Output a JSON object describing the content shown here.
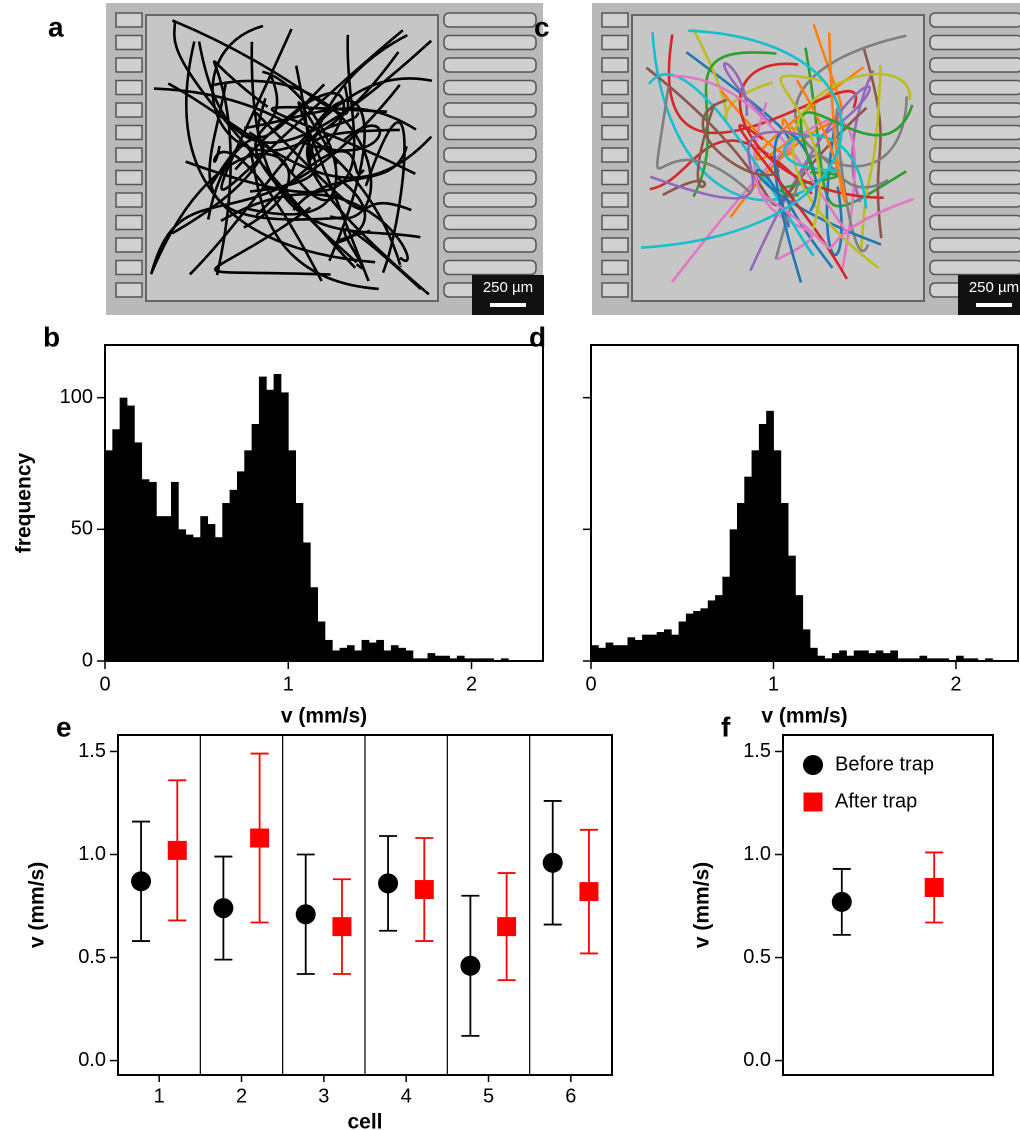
{
  "images": [
    {
      "panel_label": "a",
      "scale_bar": "250 µm"
    },
    {
      "panel_label": "c",
      "scale_bar": "250 µm"
    }
  ],
  "chart_data": [
    {
      "type": "histogram",
      "panel_label": "b",
      "xlabel": "v (mm/s)",
      "ylabel": "frequency",
      "color": "#000000",
      "bins": [
        0,
        0.04,
        0.08,
        0.12,
        0.16,
        0.2,
        0.24,
        0.28,
        0.32,
        0.36,
        0.4,
        0.44,
        0.48,
        0.52,
        0.56,
        0.6,
        0.64,
        0.68,
        0.72,
        0.76,
        0.8,
        0.84,
        0.88,
        0.92,
        0.96,
        1,
        1.04,
        1.08,
        1.12,
        1.16,
        1.2,
        1.24,
        1.28,
        1.32,
        1.36,
        1.4,
        1.44,
        1.48,
        1.52,
        1.56,
        1.6,
        1.64,
        1.68,
        1.72,
        1.76,
        1.8,
        1.84,
        1.88,
        1.92,
        1.96,
        2,
        2.04,
        2.08,
        2.12,
        2.16,
        2.2,
        2.24
      ],
      "values": [
        80,
        88,
        100,
        97,
        83,
        69,
        68,
        55,
        55,
        68,
        50,
        48,
        47,
        55,
        52,
        47,
        60,
        65,
        72,
        80,
        90,
        108,
        103,
        109,
        102,
        80,
        60,
        45,
        28,
        15,
        8,
        4,
        5,
        6,
        4,
        8,
        7,
        8,
        4,
        6,
        5,
        4,
        1,
        1,
        3,
        2,
        2,
        1,
        2,
        1,
        1,
        1,
        1,
        0,
        1,
        0
      ],
      "xlim": [
        0,
        2.39
      ],
      "xticks": [
        0,
        1,
        2
      ],
      "ylim": [
        0,
        120
      ],
      "yticks": [
        0,
        50,
        100
      ]
    },
    {
      "type": "histogram",
      "panel_label": "d",
      "xlabel": "v (mm/s)",
      "color": "#000000",
      "ytick_labels": false,
      "bins": [
        0,
        0.04,
        0.08,
        0.12,
        0.16,
        0.2,
        0.24,
        0.28,
        0.32,
        0.36,
        0.4,
        0.44,
        0.48,
        0.52,
        0.56,
        0.6,
        0.64,
        0.68,
        0.72,
        0.76,
        0.8,
        0.84,
        0.88,
        0.92,
        0.96,
        1,
        1.04,
        1.08,
        1.12,
        1.16,
        1.2,
        1.24,
        1.28,
        1.32,
        1.36,
        1.4,
        1.44,
        1.48,
        1.52,
        1.56,
        1.6,
        1.64,
        1.68,
        1.72,
        1.76,
        1.8,
        1.84,
        1.88,
        1.92,
        1.96,
        2,
        2.04,
        2.08,
        2.12,
        2.16,
        2.2,
        2.24
      ],
      "values": [
        6,
        5,
        7,
        6,
        6,
        9,
        8,
        10,
        10,
        11,
        12,
        10,
        15,
        18,
        19,
        20,
        23,
        25,
        32,
        50,
        60,
        70,
        80,
        90,
        95,
        80,
        60,
        40,
        25,
        12,
        5,
        2,
        1,
        3,
        4,
        2,
        4,
        4,
        3,
        4,
        3,
        4,
        1,
        1,
        1,
        2,
        1,
        1,
        1,
        0,
        2,
        1,
        1,
        0,
        1,
        0
      ],
      "xlim": [
        0,
        2.34
      ],
      "xticks": [
        0,
        1,
        2
      ],
      "ylim": [
        0,
        120
      ],
      "yticks": [
        0,
        50,
        100
      ]
    },
    {
      "type": "errorbar",
      "panel_label": "e",
      "xlabel": "cell",
      "ylabel": "v (mm/s)",
      "separators": true,
      "categories": [
        "1",
        "2",
        "3",
        "4",
        "5",
        "6"
      ],
      "series": [
        {
          "name": "Before trap",
          "color": "#000000",
          "marker": "circle",
          "values": [
            0.87,
            0.74,
            0.71,
            0.86,
            0.46,
            0.96
          ],
          "errors": [
            0.29,
            0.25,
            0.29,
            0.23,
            0.34,
            0.3
          ]
        },
        {
          "name": "After trap",
          "color": "#ff0000",
          "marker": "square",
          "values": [
            1.02,
            1.08,
            0.65,
            0.83,
            0.65,
            0.82
          ],
          "errors": [
            0.34,
            0.41,
            0.23,
            0.25,
            0.26,
            0.3
          ]
        }
      ],
      "ylim": [
        -0.07,
        1.58
      ],
      "yticks": [
        {
          "value": 0,
          "label": "0.0"
        },
        0.5,
        {
          "value": 1,
          "label": "1.0"
        },
        1.5
      ]
    },
    {
      "type": "errorbar",
      "panel_label": "f",
      "ylabel": "v (mm/s)",
      "legend": "upper left",
      "series": [
        {
          "name": "Before trap",
          "color": "#000000",
          "marker": "circle",
          "values": [
            0.77
          ],
          "errors": [
            0.16
          ]
        },
        {
          "name": "After trap",
          "color": "#ff0000",
          "marker": "square",
          "values": [
            0.84
          ],
          "errors": [
            0.17
          ]
        }
      ],
      "ylim": [
        -0.07,
        1.58
      ],
      "yticks": [
        {
          "value": 0,
          "label": "0.0"
        },
        0.5,
        {
          "value": 1,
          "label": "1.0"
        },
        1.5
      ]
    }
  ]
}
